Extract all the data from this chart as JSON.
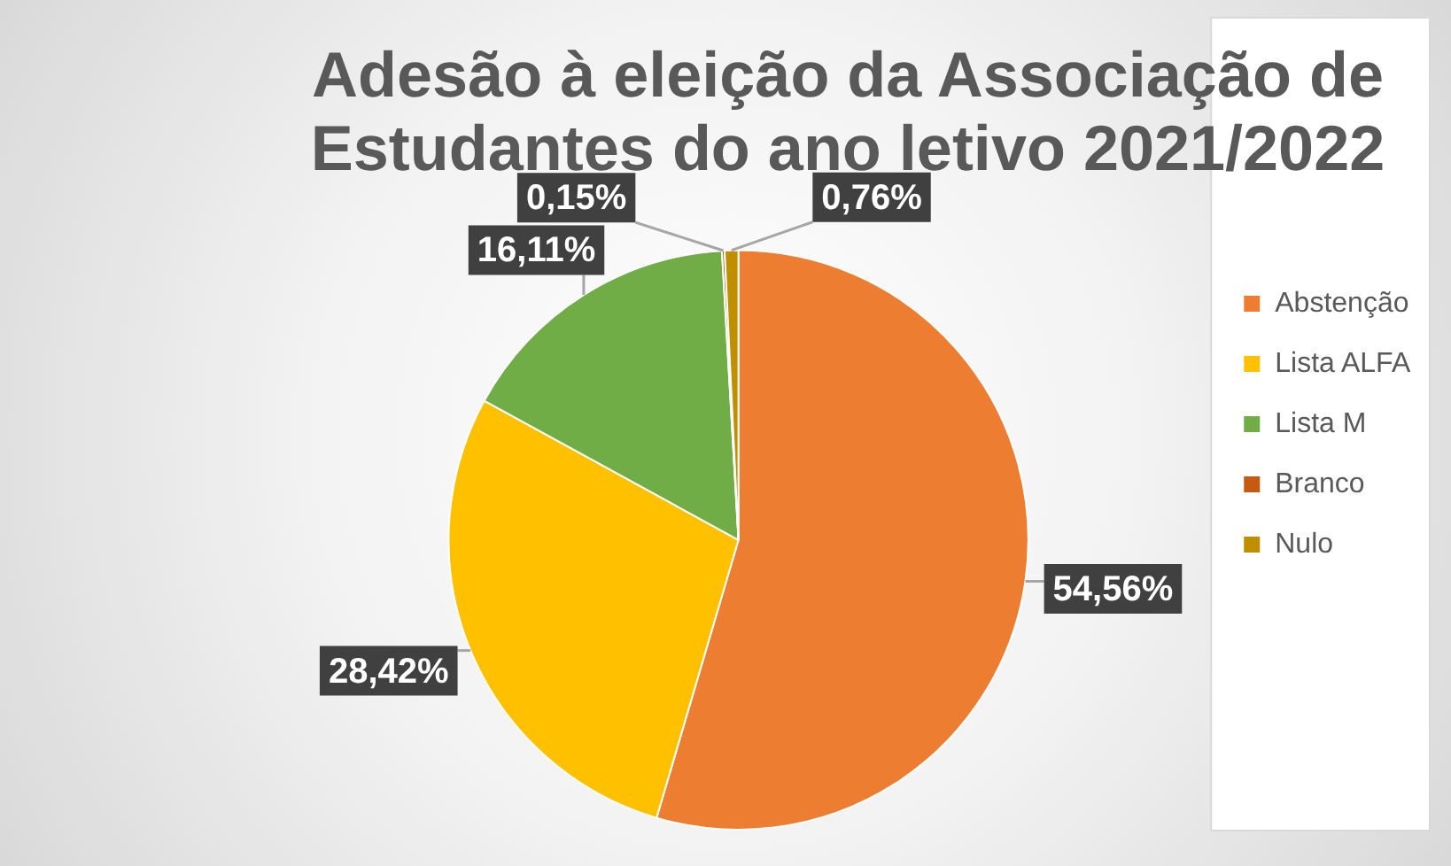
{
  "chart_data": {
    "type": "pie",
    "title": "Adesão à eleição da Associação de Estudantes do ano letivo 2021/2022",
    "categories": [
      "Abstenção",
      "Lista ALFA",
      "Lista M",
      "Branco",
      "Nulo"
    ],
    "values": [
      54.56,
      28.42,
      16.11,
      0.15,
      0.76
    ],
    "colors": [
      "#ed7d31",
      "#ffc000",
      "#70ad47",
      "#c55a11",
      "#bf8f00"
    ],
    "value_labels": [
      "54,56%",
      "28,42%",
      "16,11%",
      "0,15%",
      "0,76%"
    ],
    "legend": "right"
  }
}
